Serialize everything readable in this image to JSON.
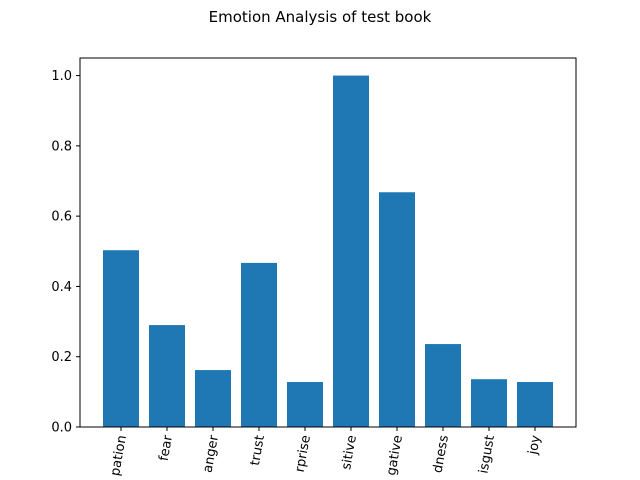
{
  "chart_data": {
    "type": "bar",
    "title": "Emotion Analysis of test book",
    "xlabel": "",
    "ylabel": "",
    "categories": [
      "anticipation",
      "fear",
      "anger",
      "trust",
      "surprise",
      "positive",
      "negative",
      "sadness",
      "disgust",
      "joy"
    ],
    "visible_tick_labels": [
      "pation",
      "fear",
      "anger",
      "trust",
      "rprise",
      "sitive",
      "gative",
      "dness",
      "isgust",
      "joy"
    ],
    "values": [
      0.503,
      0.29,
      0.162,
      0.467,
      0.128,
      1.0,
      0.668,
      0.236,
      0.136,
      0.128
    ],
    "ylim": [
      0,
      1.05
    ],
    "yticks": [
      0.0,
      0.2,
      0.4,
      0.6,
      0.8,
      1.0
    ],
    "ytick_labels": [
      "0.0",
      "0.2",
      "0.4",
      "0.6",
      "0.8",
      "1.0"
    ],
    "bar_color": "#1f77b4",
    "grid": false,
    "legend": "none",
    "xtick_rotation": "rotated ~80°"
  }
}
